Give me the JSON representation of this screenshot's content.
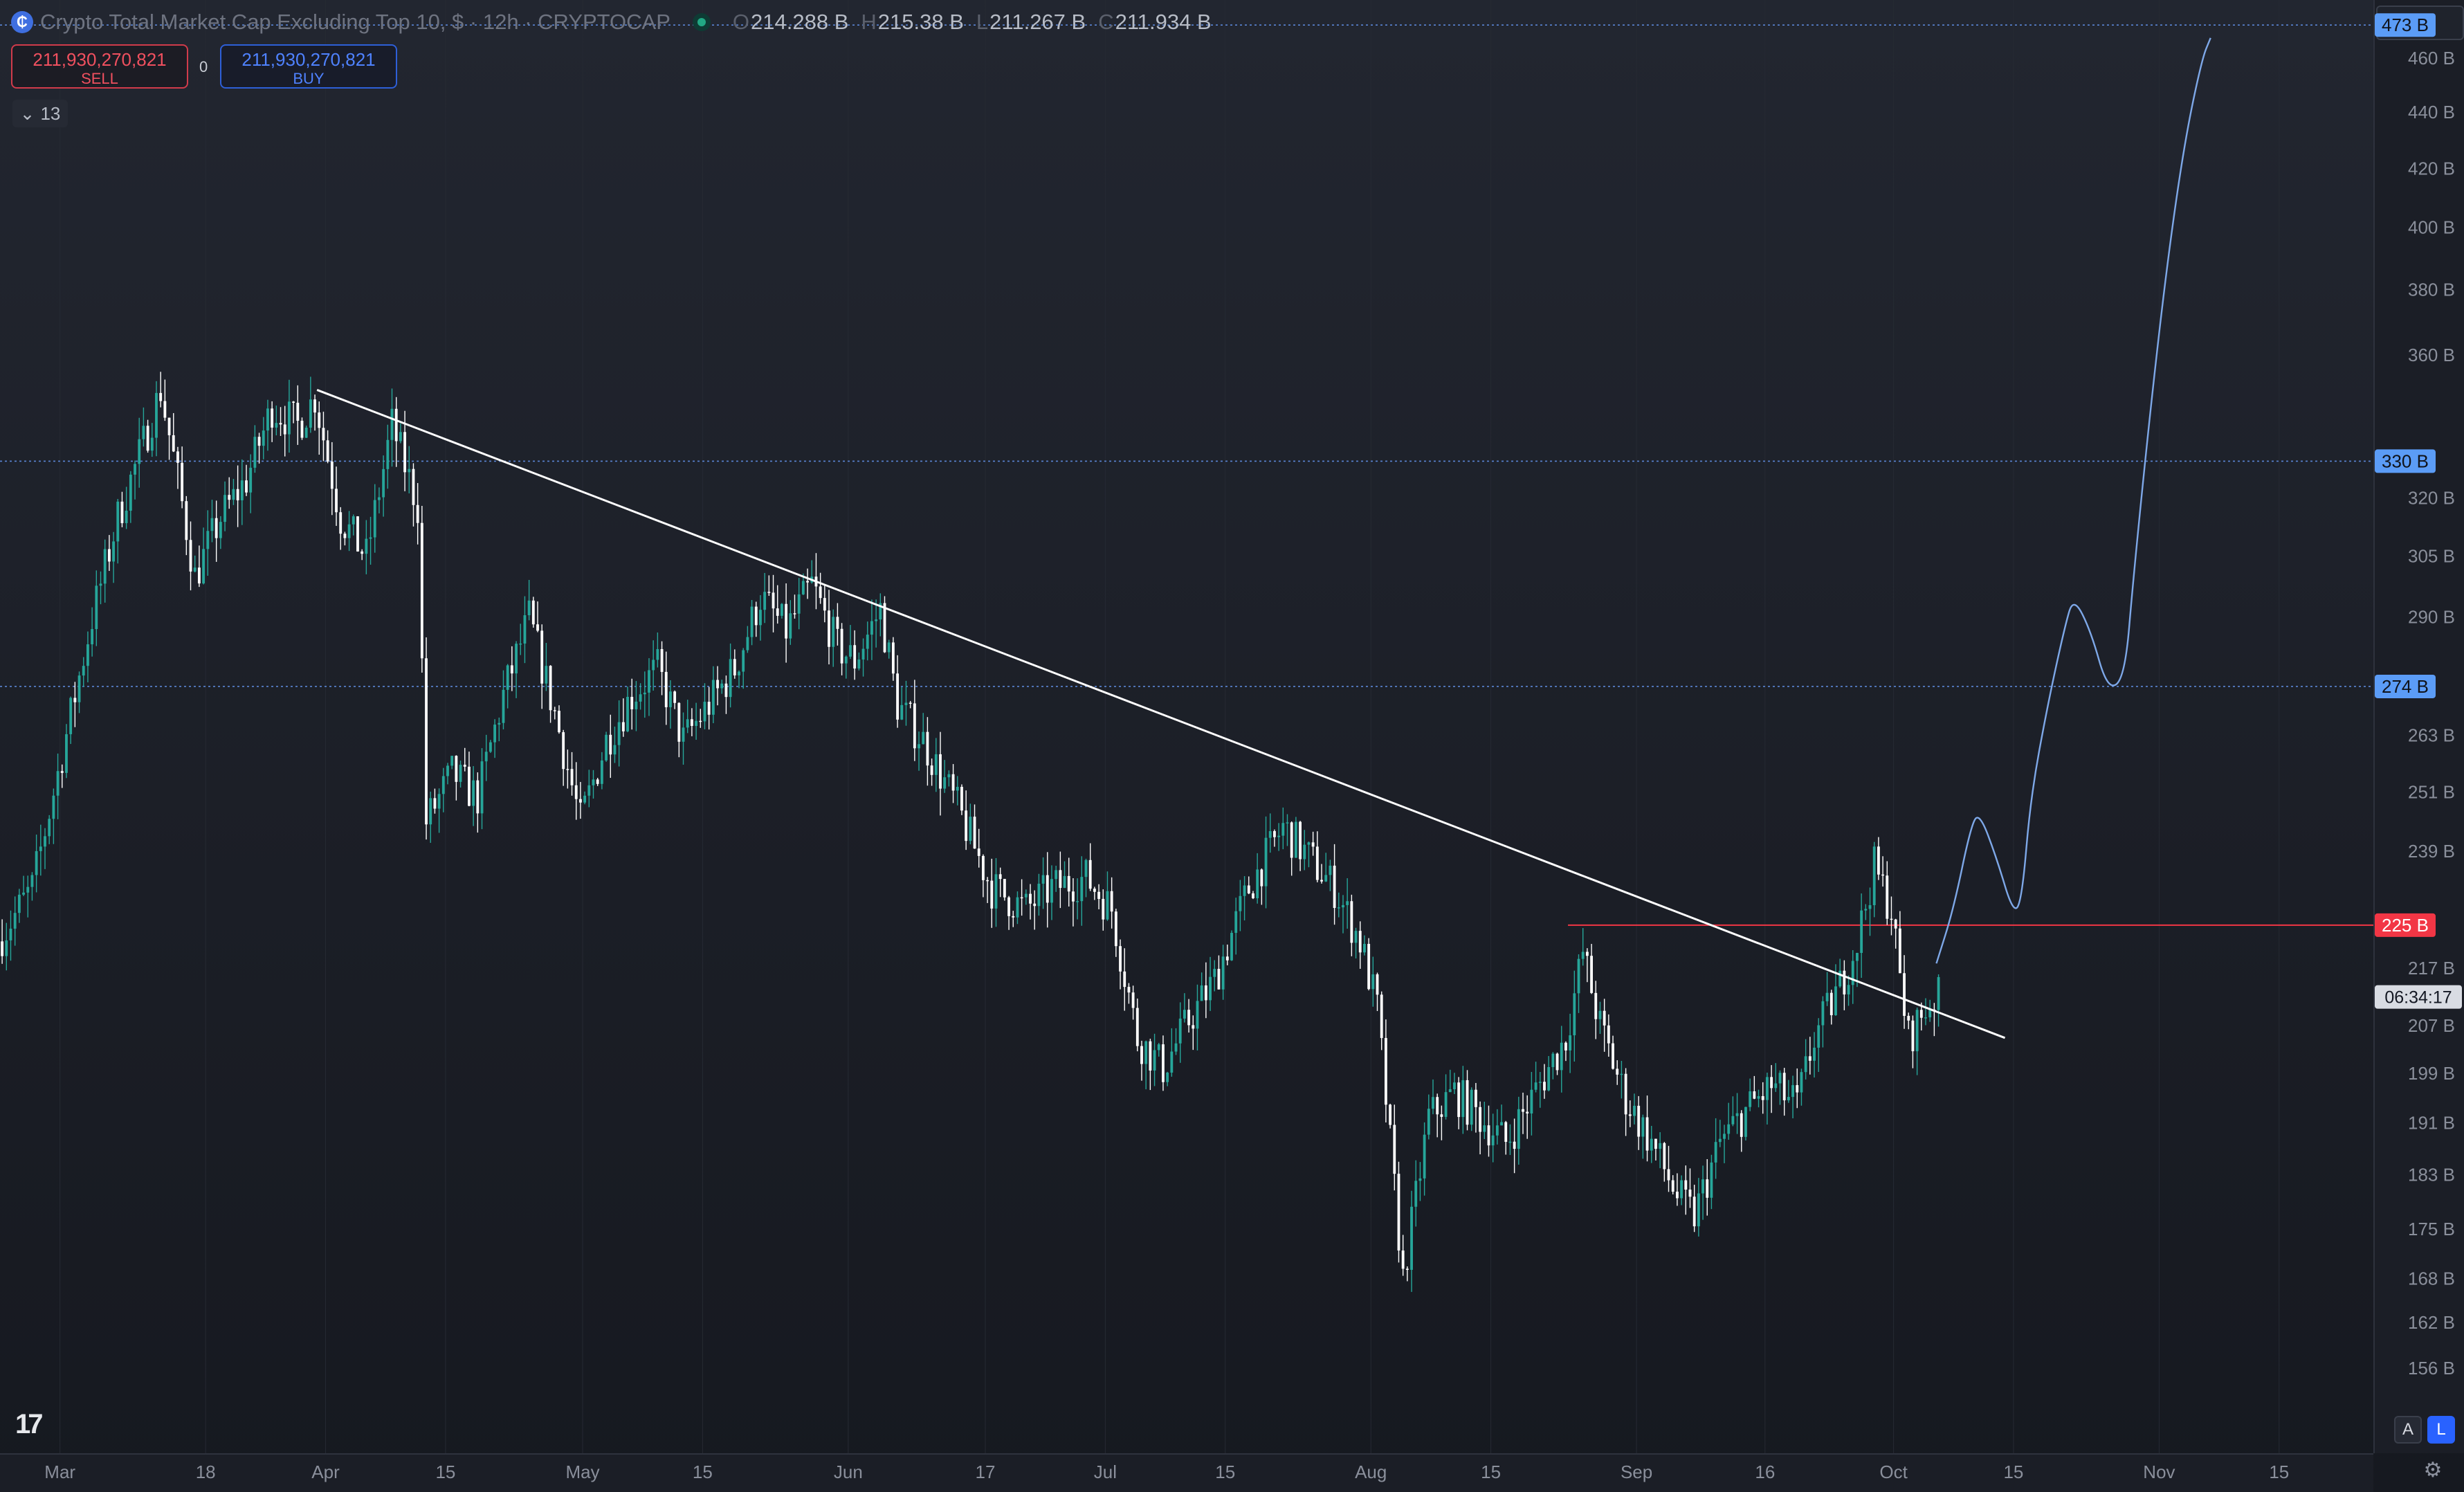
{
  "header": {
    "symbol_icon": "crypto-cap-logo",
    "title": "Crypto Total Market Cap Excluding Top 10, $ · 12h · CRYPTOCAP",
    "status": "market-open-dot",
    "ohlc": [
      {
        "key": "O",
        "value": "214.288 B"
      },
      {
        "key": "H",
        "value": "215.38 B"
      },
      {
        "key": "L",
        "value": "211.267 B"
      },
      {
        "key": "C",
        "value": "211.934 B"
      }
    ]
  },
  "trade": {
    "sell_price": "211,930,270,821",
    "sell_label": "SELL",
    "buy_price": "211,930,270,821",
    "buy_label": "BUY",
    "spread": "0"
  },
  "indicators": {
    "count": "13"
  },
  "currency": "USD",
  "controls": {
    "auto": "A",
    "log": "L"
  },
  "countdown": "06:34:17",
  "colors": {
    "up": "#26a69a",
    "down": "#ffffff",
    "red_line": "#f23645",
    "accent": "#2962ff",
    "projection": "#7ea8e8"
  },
  "chart_data": {
    "type": "candlestick",
    "title": "Crypto Total Market Cap Excluding Top 10, $",
    "interval": "12h",
    "scale": "log",
    "ylim": [
      150,
      480
    ],
    "y_unit": "B",
    "x_range": [
      "2024-02-23",
      "2024-11-26"
    ],
    "x_ticks": [
      {
        "date": "2024-03-01",
        "label": "Mar"
      },
      {
        "date": "2024-03-18",
        "label": "18"
      },
      {
        "date": "2024-04-01",
        "label": "Apr"
      },
      {
        "date": "2024-04-15",
        "label": "15"
      },
      {
        "date": "2024-05-01",
        "label": "May"
      },
      {
        "date": "2024-05-15",
        "label": "15"
      },
      {
        "date": "2024-06-01",
        "label": "Jun"
      },
      {
        "date": "2024-06-17",
        "label": "17"
      },
      {
        "date": "2024-07-01",
        "label": "Jul"
      },
      {
        "date": "2024-07-15",
        "label": "15"
      },
      {
        "date": "2024-08-01",
        "label": "Aug"
      },
      {
        "date": "2024-08-15",
        "label": "15"
      },
      {
        "date": "2024-09-01",
        "label": "Sep"
      },
      {
        "date": "2024-09-16",
        "label": "16"
      },
      {
        "date": "2024-10-01",
        "label": "Oct"
      },
      {
        "date": "2024-10-15",
        "label": "15"
      },
      {
        "date": "2024-11-01",
        "label": "Nov"
      },
      {
        "date": "2024-11-15",
        "label": "15"
      }
    ],
    "y_ticks": [
      {
        "value": 156,
        "label": "156 B"
      },
      {
        "value": 162,
        "label": "162 B"
      },
      {
        "value": 168,
        "label": "168 B"
      },
      {
        "value": 175,
        "label": "175 B"
      },
      {
        "value": 183,
        "label": "183 B"
      },
      {
        "value": 191,
        "label": "191 B"
      },
      {
        "value": 199,
        "label": "199 B"
      },
      {
        "value": 207,
        "label": "207 B"
      },
      {
        "value": 217,
        "label": "217 B"
      },
      {
        "value": 239,
        "label": "239 B"
      },
      {
        "value": 251,
        "label": "251 B"
      },
      {
        "value": 263,
        "label": "263 B"
      },
      {
        "value": 290,
        "label": "290 B"
      },
      {
        "value": 305,
        "label": "305 B"
      },
      {
        "value": 320,
        "label": "320 B"
      },
      {
        "value": 360,
        "label": "360 B"
      },
      {
        "value": 380,
        "label": "380 B"
      },
      {
        "value": 400,
        "label": "400 B"
      },
      {
        "value": 420,
        "label": "420 B"
      },
      {
        "value": 440,
        "label": "440 B"
      },
      {
        "value": 460,
        "label": "460 B"
      }
    ],
    "price_tags": [
      {
        "value": 473,
        "label": "473 B",
        "style": "blue"
      },
      {
        "value": 330,
        "label": "330 B",
        "style": "blue"
      },
      {
        "value": 274,
        "label": "274 B",
        "style": "blue"
      },
      {
        "value": 225,
        "label": "225 B",
        "style": "red"
      }
    ],
    "horizontal_lines": [
      {
        "value": 473,
        "style": "dotted",
        "color": "#5b86d6"
      },
      {
        "value": 330,
        "style": "dotted",
        "color": "#5b86d6"
      },
      {
        "value": 274,
        "style": "dotted",
        "color": "#5b86d6"
      },
      {
        "value": 225,
        "style": "solid",
        "color": "#f23645",
        "from": "2024-08-24"
      }
    ],
    "trendline": {
      "points": [
        [
          "2024-03-31",
          350
        ],
        [
          "2024-10-14",
          205
        ]
      ],
      "color": "#ffffff"
    },
    "projection_path": [
      [
        "2024-10-06",
        218
      ],
      [
        "2024-10-08",
        228
      ],
      [
        "2024-10-10",
        244
      ],
      [
        "2024-10-11",
        247
      ],
      [
        "2024-10-13",
        238
      ],
      [
        "2024-10-15",
        227
      ],
      [
        "2024-10-16",
        230
      ],
      [
        "2024-10-17",
        250
      ],
      [
        "2024-10-19",
        270
      ],
      [
        "2024-10-21",
        288
      ],
      [
        "2024-10-22",
        295
      ],
      [
        "2024-10-24",
        287
      ],
      [
        "2024-10-26",
        273
      ],
      [
        "2024-10-28",
        276
      ],
      [
        "2024-10-29",
        300
      ],
      [
        "2024-10-31",
        345
      ],
      [
        "2024-11-02",
        390
      ],
      [
        "2024-11-04",
        430
      ],
      [
        "2024-11-06",
        460
      ],
      [
        "2024-11-07",
        468
      ]
    ],
    "price_path": [
      [
        "2024-02-23",
        222
      ],
      [
        "2024-02-27",
        232
      ],
      [
        "2024-03-01",
        255
      ],
      [
        "2024-03-05",
        290
      ],
      [
        "2024-03-08",
        315
      ],
      [
        "2024-03-11",
        335
      ],
      [
        "2024-03-13",
        350
      ],
      [
        "2024-03-15",
        325
      ],
      [
        "2024-03-17",
        300
      ],
      [
        "2024-03-20",
        315
      ],
      [
        "2024-03-23",
        325
      ],
      [
        "2024-03-26",
        345
      ],
      [
        "2024-03-29",
        340
      ],
      [
        "2024-03-31",
        348
      ],
      [
        "2024-04-03",
        315
      ],
      [
        "2024-04-06",
        305
      ],
      [
        "2024-04-09",
        340
      ],
      [
        "2024-04-12",
        318
      ],
      [
        "2024-04-13",
        245
      ],
      [
        "2024-04-16",
        255
      ],
      [
        "2024-04-19",
        250
      ],
      [
        "2024-04-22",
        272
      ],
      [
        "2024-04-25",
        290
      ],
      [
        "2024-04-28",
        268
      ],
      [
        "2024-05-01",
        245
      ],
      [
        "2024-05-04",
        262
      ],
      [
        "2024-05-07",
        272
      ],
      [
        "2024-05-10",
        278
      ],
      [
        "2024-05-13",
        262
      ],
      [
        "2024-05-16",
        270
      ],
      [
        "2024-05-19",
        278
      ],
      [
        "2024-05-22",
        295
      ],
      [
        "2024-05-25",
        287
      ],
      [
        "2024-05-28",
        298
      ],
      [
        "2024-05-31",
        283
      ],
      [
        "2024-06-02",
        280
      ],
      [
        "2024-06-05",
        292
      ],
      [
        "2024-06-07",
        270
      ],
      [
        "2024-06-10",
        262
      ],
      [
        "2024-06-14",
        248
      ],
      [
        "2024-06-18",
        232
      ],
      [
        "2024-06-22",
        228
      ],
      [
        "2024-06-25",
        232
      ],
      [
        "2024-06-29",
        234
      ],
      [
        "2024-07-02",
        228
      ],
      [
        "2024-07-05",
        205
      ],
      [
        "2024-07-08",
        200
      ],
      [
        "2024-07-11",
        208
      ],
      [
        "2024-07-14",
        215
      ],
      [
        "2024-07-18",
        232
      ],
      [
        "2024-07-22",
        244
      ],
      [
        "2024-07-25",
        238
      ],
      [
        "2024-07-28",
        232
      ],
      [
        "2024-07-31",
        222
      ],
      [
        "2024-08-02",
        210
      ],
      [
        "2024-08-05",
        168
      ],
      [
        "2024-08-08",
        192
      ],
      [
        "2024-08-11",
        196
      ],
      [
        "2024-08-14",
        192
      ],
      [
        "2024-08-17",
        188
      ],
      [
        "2024-08-20",
        195
      ],
      [
        "2024-08-24",
        205
      ],
      [
        "2024-08-26",
        220
      ],
      [
        "2024-08-28",
        207
      ],
      [
        "2024-08-31",
        195
      ],
      [
        "2024-09-03",
        188
      ],
      [
        "2024-09-06",
        180
      ],
      [
        "2024-09-08",
        177
      ],
      [
        "2024-09-11",
        188
      ],
      [
        "2024-09-14",
        193
      ],
      [
        "2024-09-17",
        197
      ],
      [
        "2024-09-20",
        194
      ],
      [
        "2024-09-22",
        205
      ],
      [
        "2024-09-25",
        214
      ],
      [
        "2024-09-27",
        222
      ],
      [
        "2024-09-29",
        236
      ],
      [
        "2024-10-01",
        228
      ],
      [
        "2024-10-02",
        215
      ],
      [
        "2024-10-03",
        205
      ],
      [
        "2024-10-05",
        210
      ],
      [
        "2024-10-06",
        212
      ]
    ]
  }
}
